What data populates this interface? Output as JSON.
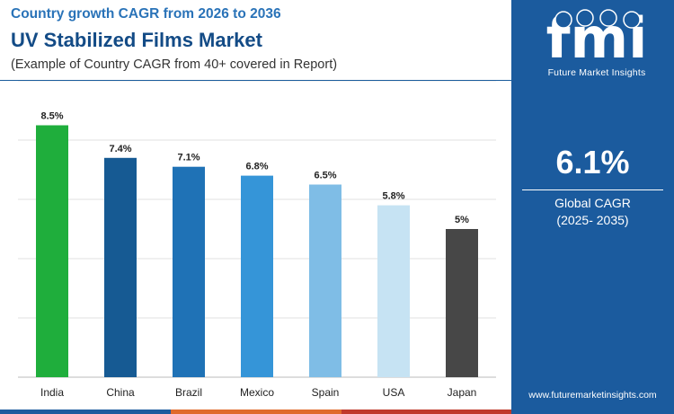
{
  "header": {
    "kicker": "Country growth CAGR from 2026 to 2036",
    "title": "UV Stabilized Films Market",
    "description": "(Example of Country CAGR from 40+ covered in Report)"
  },
  "chart_data": {
    "type": "bar",
    "categories": [
      "India",
      "China",
      "Brazil",
      "Mexico",
      "Spain",
      "USA",
      "Japan"
    ],
    "values": [
      8.5,
      7.4,
      7.1,
      6.8,
      6.5,
      5.8,
      5.0
    ],
    "value_labels": [
      "8.5%",
      "7.4%",
      "7.1%",
      "6.8%",
      "6.5%",
      "5.8%",
      "5%"
    ],
    "colors": [
      "#1fae3c",
      "#165a93",
      "#1f72b6",
      "#3595d8",
      "#7fbde6",
      "#c6e3f3",
      "#474747"
    ],
    "ylim": [
      0,
      10
    ],
    "grid": true
  },
  "panel": {
    "logo_letters": "fmi",
    "logo_text": "Future Market Insights",
    "global_cagr_value": "6.1%",
    "global_cagr_label": "Global CAGR",
    "global_cagr_period": "(2025- 2035)",
    "website": "www.futuremarketinsights.com",
    "background_color": "#1b5b9e"
  },
  "accent_colors": [
    "#1b5b9e",
    "#e06a2b",
    "#c0392b",
    "#1fae3c"
  ]
}
